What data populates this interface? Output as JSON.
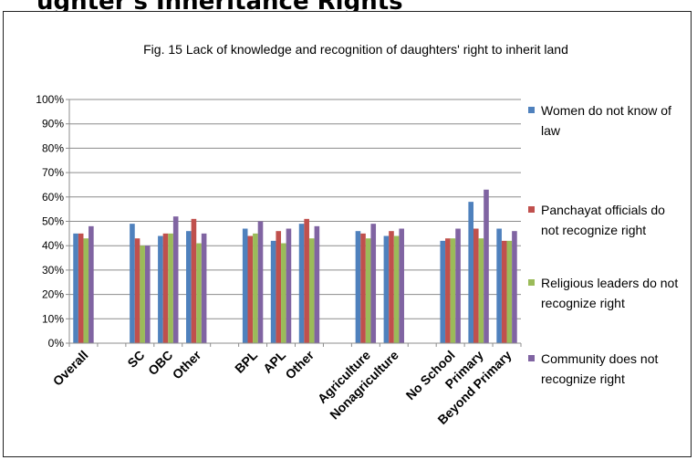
{
  "page": {
    "heading": "ughter's Inheritance Rights"
  },
  "chart_data": {
    "type": "bar",
    "title": "Fig. 15 Lack of knowledge and recognition of daughters' right to inherit land",
    "xlabel": "",
    "ylabel": "",
    "ylim": [
      0,
      100
    ],
    "yticks": [
      "0%",
      "10%",
      "20%",
      "30%",
      "40%",
      "50%",
      "60%",
      "70%",
      "80%",
      "90%",
      "100%"
    ],
    "grid": true,
    "legend": "right",
    "categories": [
      "Overall",
      "SC",
      "OBC",
      "Other",
      "BPL",
      "APL",
      "Other",
      "Agriculture",
      "Nonagriculture",
      "No School",
      "Primary",
      "Beyond Primary"
    ],
    "groups": [
      [
        0
      ],
      [
        1,
        2,
        3
      ],
      [
        4,
        5,
        6
      ],
      [
        7,
        8
      ],
      [
        9,
        10,
        11
      ]
    ],
    "series": [
      {
        "name": "Women do not know of law",
        "legend_lines": [
          "Women do not know of",
          "law"
        ],
        "color": "#4f81bd",
        "values": [
          45,
          49,
          44,
          46,
          47,
          42,
          49,
          46,
          44,
          42,
          58,
          47
        ]
      },
      {
        "name": "Panchayat officials do not recognize right",
        "legend_lines": [
          "Panchayat officials do",
          "not recognize right"
        ],
        "color": "#c0504d",
        "values": [
          45,
          43,
          45,
          51,
          44,
          46,
          51,
          45,
          46,
          43,
          47,
          42
        ]
      },
      {
        "name": "Religious leaders do not recognize right",
        "legend_lines": [
          "Religious leaders do not",
          "recognize right"
        ],
        "color": "#9bbb59",
        "values": [
          43,
          40,
          45,
          41,
          45,
          41,
          43,
          43,
          44,
          43,
          43,
          42
        ]
      },
      {
        "name": "Community does not recognize right",
        "legend_lines": [
          "Community does not",
          "recognize right"
        ],
        "color": "#8064a2",
        "values": [
          48,
          40,
          52,
          45,
          50,
          47,
          48,
          49,
          47,
          47,
          63,
          46
        ]
      }
    ]
  }
}
